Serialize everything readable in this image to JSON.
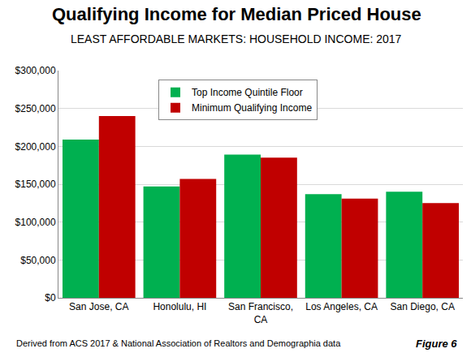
{
  "chart_data": {
    "type": "bar",
    "title": "Qualifying Income for Median Priced House",
    "subtitle": "LEAST AFFORDABLE MARKETS: HOUSEHOLD INCOME: 2017",
    "annotations": [
      "Derived from ACS 2017 & National Association of Realtors and Demographia data",
      "Figure 6"
    ],
    "categories": [
      "San Jose, CA",
      "Honolulu, HI",
      "San Francisco, CA",
      "Los Angeles, CA",
      "San Diego, CA"
    ],
    "series": [
      {
        "name": "Top Income Quintile Floor",
        "color": "#00b050",
        "values": [
          209000,
          147000,
          189000,
          137000,
          140000
        ]
      },
      {
        "name": "Minimum Qualifying Income",
        "color": "#c00000",
        "values": [
          240000,
          157000,
          185000,
          131000,
          125000
        ]
      }
    ],
    "ylim": [
      0,
      300000
    ],
    "yticks": [
      {
        "value": 0,
        "label": "$0"
      },
      {
        "value": 50000,
        "label": "$50,000"
      },
      {
        "value": 100000,
        "label": "$100,000"
      },
      {
        "value": 150000,
        "label": "$150,000"
      },
      {
        "value": 200000,
        "label": "$200,000"
      },
      {
        "value": 250000,
        "label": "$250,000"
      },
      {
        "value": 300000,
        "label": "$300,000"
      }
    ],
    "grid": true,
    "legend": "upper left",
    "data_labels": false
  }
}
